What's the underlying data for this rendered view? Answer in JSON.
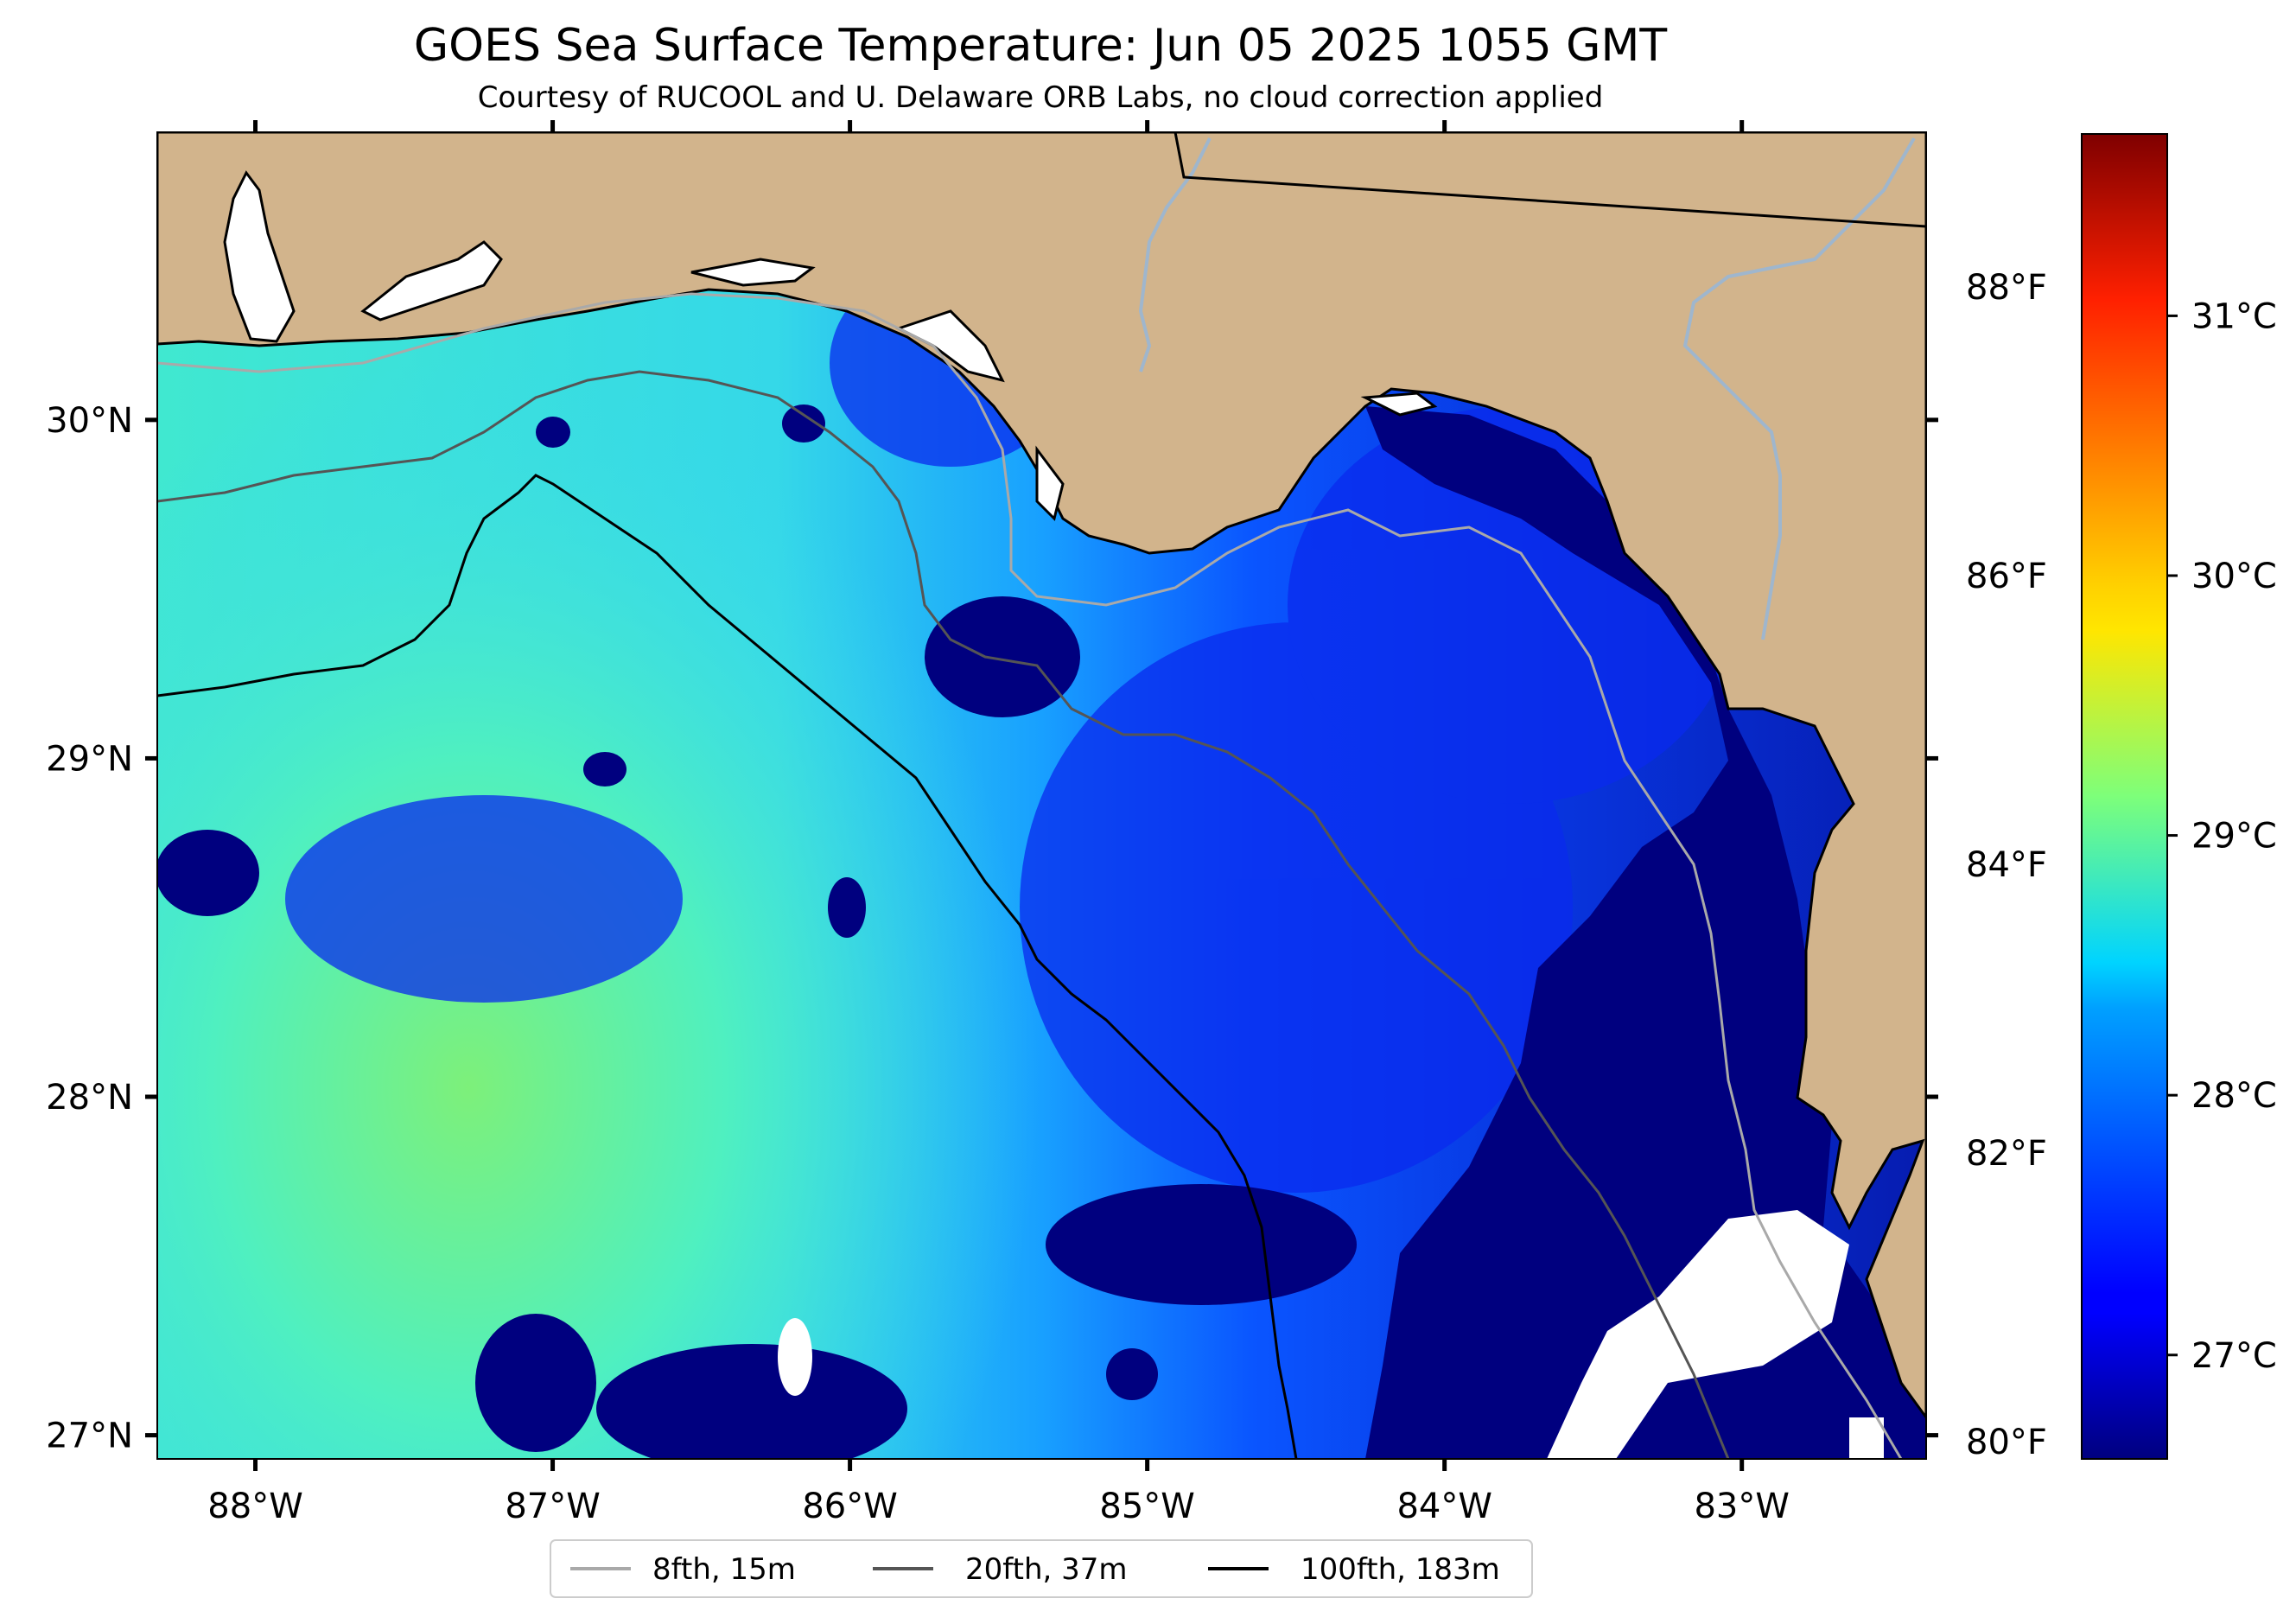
{
  "title": "GOES Sea Surface Temperature: Jun 05 2025 1055 GMT",
  "subtitle": "Courtesy of RUCOOL and U. Delaware ORB Labs, no cloud correction applied",
  "map": {
    "extent": {
      "lon_min": -88.33,
      "lon_max": -82.38,
      "lat_min": 26.93,
      "lat_max": 30.85
    },
    "colors": {
      "land": "#d2b48c",
      "cloud_mask": "#ffffff",
      "coast": "#000000",
      "rivers": "#9fb6cd"
    },
    "x_ticks": [
      {
        "lon": -88,
        "label": "88°W"
      },
      {
        "lon": -87,
        "label": "87°W"
      },
      {
        "lon": -86,
        "label": "86°W"
      },
      {
        "lon": -85,
        "label": "85°W"
      },
      {
        "lon": -84,
        "label": "84°W"
      },
      {
        "lon": -83,
        "label": "83°W"
      }
    ],
    "y_ticks": [
      {
        "lat": 30,
        "label": "30°N"
      },
      {
        "lat": 29,
        "label": "29°N"
      },
      {
        "lat": 28,
        "label": "28°N"
      },
      {
        "lat": 27,
        "label": "27°N"
      }
    ]
  },
  "colorbar": {
    "colormap": "jet",
    "range_c": [
      26.6,
      31.7
    ],
    "c_ticks": [
      {
        "value": 27,
        "label": "27°C"
      },
      {
        "value": 28,
        "label": "28°C"
      },
      {
        "value": 29,
        "label": "29°C"
      },
      {
        "value": 30,
        "label": "30°C"
      },
      {
        "value": 31,
        "label": "31°C"
      }
    ],
    "f_ticks": [
      {
        "value": 80,
        "label": "80°F"
      },
      {
        "value": 82,
        "label": "82°F"
      },
      {
        "value": 84,
        "label": "84°F"
      },
      {
        "value": 86,
        "label": "86°F"
      },
      {
        "value": 88,
        "label": "88°F"
      }
    ]
  },
  "legend": {
    "placement": "bottom-center",
    "items": [
      {
        "label": "8fth, 15m",
        "color": "#a9a9a9"
      },
      {
        "label": "20fth, 37m",
        "color": "#555555"
      },
      {
        "label": "100fth, 183m",
        "color": "#000000"
      }
    ]
  }
}
